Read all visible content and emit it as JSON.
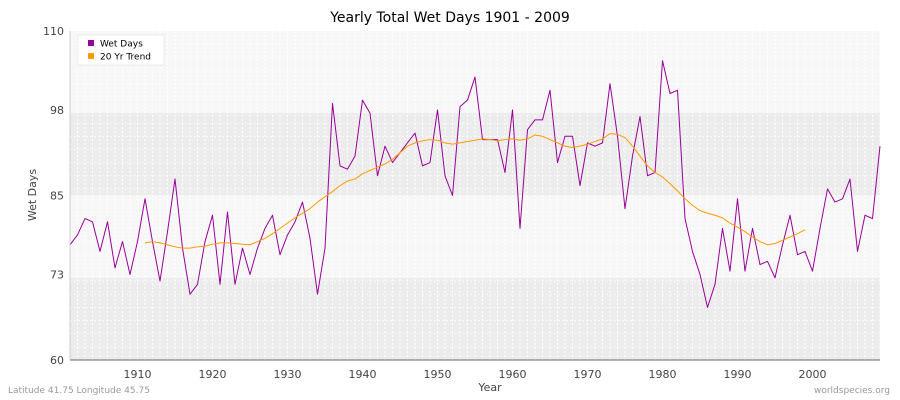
{
  "chart_data": {
    "type": "line",
    "title": "Yearly Total Wet Days 1901 - 2009",
    "xlabel": "Year",
    "ylabel": "Wet Days",
    "xlim": [
      1901,
      2009
    ],
    "ylim": [
      60,
      110
    ],
    "yticks": [
      60,
      73,
      85,
      98,
      110
    ],
    "xticks": [
      1910,
      1920,
      1930,
      1940,
      1950,
      1960,
      1970,
      1980,
      1990,
      2000
    ],
    "grid": true,
    "legend_position": "top-left",
    "series": [
      {
        "name": "Wet Days",
        "color": "#990099",
        "x": [
          1901,
          1902,
          1903,
          1904,
          1905,
          1906,
          1907,
          1908,
          1909,
          1910,
          1911,
          1912,
          1913,
          1914,
          1915,
          1916,
          1917,
          1918,
          1919,
          1920,
          1921,
          1922,
          1923,
          1924,
          1925,
          1926,
          1927,
          1928,
          1929,
          1930,
          1931,
          1932,
          1933,
          1934,
          1935,
          1936,
          1937,
          1938,
          1939,
          1940,
          1941,
          1942,
          1943,
          1944,
          1945,
          1946,
          1947,
          1948,
          1949,
          1950,
          1951,
          1952,
          1953,
          1954,
          1955,
          1956,
          1957,
          1958,
          1959,
          1960,
          1961,
          1962,
          1963,
          1964,
          1965,
          1966,
          1967,
          1968,
          1969,
          1970,
          1971,
          1972,
          1973,
          1974,
          1975,
          1976,
          1977,
          1978,
          1979,
          1980,
          1981,
          1982,
          1983,
          1984,
          1985,
          1986,
          1987,
          1988,
          1989,
          1990,
          1991,
          1992,
          1993,
          1994,
          1995,
          1996,
          1997,
          1998,
          1999,
          2000,
          2001,
          2002,
          2003,
          2004,
          2005,
          2006,
          2007,
          2008,
          2009
        ],
        "values": [
          77.5,
          79,
          81.5,
          81,
          76.5,
          81,
          74,
          78,
          73,
          78,
          84.5,
          78,
          72,
          79.5,
          87.5,
          77,
          70,
          71.5,
          78,
          82,
          71.5,
          82.5,
          71.5,
          77,
          73,
          77,
          80,
          82,
          76,
          79,
          81,
          84,
          78.5,
          70,
          77,
          99,
          89.5,
          89,
          91,
          99.5,
          97.5,
          88,
          92.5,
          90,
          91.5,
          93,
          94.5,
          89.5,
          90,
          98,
          88,
          85,
          98.5,
          99.5,
          103,
          93.5,
          93.5,
          93.5,
          88.5,
          98,
          80,
          95,
          96.5,
          96.5,
          101,
          90,
          94,
          94,
          86.5,
          93,
          92.5,
          93,
          102,
          94,
          83,
          91,
          97,
          88,
          88.5,
          105.5,
          100.5,
          101,
          81.5,
          76.5,
          73,
          68,
          71.5,
          80,
          73.5,
          84.5,
          73.5,
          80,
          74.5,
          75,
          72.5,
          77.5,
          82,
          76,
          76.5,
          73.5,
          80,
          86,
          84,
          84.5,
          87.5,
          76.5,
          82,
          81.5,
          92.5
        ]
      },
      {
        "name": "20 Yr Trend",
        "color": "#ff9900",
        "x": [
          1911,
          1912,
          1913,
          1914,
          1915,
          1916,
          1917,
          1918,
          1919,
          1920,
          1921,
          1922,
          1923,
          1924,
          1925,
          1926,
          1927,
          1928,
          1929,
          1930,
          1931,
          1932,
          1933,
          1934,
          1935,
          1936,
          1937,
          1938,
          1939,
          1940,
          1941,
          1942,
          1943,
          1944,
          1945,
          1946,
          1947,
          1948,
          1949,
          1950,
          1951,
          1952,
          1953,
          1954,
          1955,
          1956,
          1957,
          1958,
          1959,
          1960,
          1961,
          1962,
          1963,
          1964,
          1965,
          1966,
          1967,
          1968,
          1969,
          1970,
          1971,
          1972,
          1973,
          1974,
          1975,
          1976,
          1977,
          1978,
          1979,
          1980,
          1981,
          1982,
          1983,
          1984,
          1985,
          1986,
          1987,
          1988,
          1989,
          1990,
          1991,
          1992,
          1993,
          1994,
          1995,
          1996,
          1997,
          1998,
          1999
        ],
        "values": [
          77.8,
          78,
          77.8,
          77.5,
          77.2,
          77,
          77,
          77.2,
          77.3,
          77.6,
          77.8,
          77.8,
          77.7,
          77.6,
          77.5,
          78,
          78.5,
          79.2,
          80,
          80.8,
          81.6,
          82.3,
          83,
          84,
          84.8,
          85.6,
          86.5,
          87.2,
          87.5,
          88.3,
          88.8,
          89.3,
          89.8,
          90.5,
          91.5,
          92.5,
          93,
          93.3,
          93.5,
          93.4,
          93,
          92.8,
          93,
          93.2,
          93.4,
          93.6,
          93.5,
          93.3,
          93.5,
          93.6,
          93.4,
          93.6,
          94.2,
          94,
          93.5,
          93,
          92.5,
          92.3,
          92.5,
          92.8,
          93.2,
          93.6,
          94.4,
          94.3,
          93.8,
          92.5,
          91,
          89.5,
          88.5,
          87.8,
          86.8,
          85.7,
          84.5,
          83.5,
          82.7,
          82.3,
          82,
          81.6,
          80.8,
          80.2,
          79.5,
          78.7,
          78,
          77.5,
          77.7,
          78.2,
          78.7,
          79.2,
          79.8
        ]
      }
    ]
  },
  "footer": {
    "left": "Latitude 41.75 Longitude 45.75",
    "right": "worldspecies.org"
  }
}
